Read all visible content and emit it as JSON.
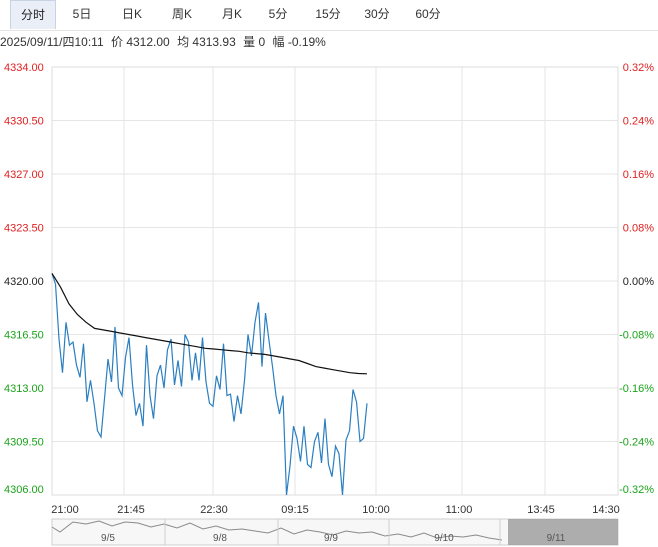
{
  "tabs": [
    {
      "label": "分时",
      "active": true
    },
    {
      "label": "5日",
      "active": false
    },
    {
      "label": "日K",
      "active": false
    },
    {
      "label": "周K",
      "active": false
    },
    {
      "label": "月K",
      "active": false
    },
    {
      "label": "5分",
      "active": false
    },
    {
      "label": "15分",
      "active": false
    },
    {
      "label": "30分",
      "active": false
    },
    {
      "label": "60分",
      "active": false
    }
  ],
  "info": {
    "datetime": "2025/09/11/四10:11",
    "price": "价 4312.00",
    "avg": "均 4313.93",
    "volume": "量 0",
    "change": "幅 -0.19%"
  },
  "colors": {
    "up": "#e02020",
    "down": "#1aa31a",
    "flat": "#222222",
    "price_line": "#2b7fc1",
    "avg_line": "#111111",
    "grid": "#e6e6e6",
    "navigator_fill": "#9a9a9a"
  },
  "chart_data": {
    "type": "line",
    "title": "",
    "xlabel": "",
    "ylabel": "",
    "ylim": [
      4306.0,
      4334.0
    ],
    "reference_price": 4320.0,
    "y_ticks_left": [
      "4334.00",
      "4330.50",
      "4327.00",
      "4323.50",
      "4320.00",
      "4316.50",
      "4313.00",
      "4309.50",
      "4306.00"
    ],
    "y_ticks_right": [
      "0.32%",
      "0.24%",
      "0.16%",
      "0.08%",
      "0.00%",
      "-0.08%",
      "-0.16%",
      "-0.24%",
      "-0.32%"
    ],
    "x_ticks": [
      "21:00",
      "21:45",
      "22:30",
      "09:15",
      "10:00",
      "11:00",
      "13:45",
      "14:30"
    ],
    "grid": true,
    "series": [
      {
        "values": [
          4320.5,
          4319.8,
          4316.2,
          4314.0,
          4317.3,
          4315.8,
          4316.0,
          4314.5,
          4313.7,
          4315.9,
          4312.1,
          4313.5,
          4312.0,
          4310.2,
          4309.8,
          4312.3,
          4314.9,
          4313.4,
          4317.0,
          4313.0,
          4312.5,
          4315.0,
          4316.3,
          4313.2,
          4311.2,
          4312.0,
          4310.5,
          4315.8,
          4312.5,
          4311.0,
          4313.8,
          4314.5,
          4313.0,
          4315.5,
          4316.2,
          4313.2,
          4314.8,
          4313.1,
          4316.5,
          4316.0,
          4313.5,
          4315.3,
          4313.5,
          4316.3,
          4313.4,
          4312.0,
          4311.8,
          4313.8,
          4312.9,
          4315.9,
          4312.5,
          4312.6,
          4310.8,
          4312.5,
          4311.3,
          4313.5,
          4316.5,
          4315.1,
          4317.3,
          4318.6,
          4314.4,
          4317.9,
          4316.1,
          4314.4,
          4312.5,
          4311.3,
          4312.5,
          4306.0,
          4307.9,
          4310.5,
          4309.7,
          4308.2,
          4310.5,
          4308.0,
          4307.8,
          4309.5,
          4310.1,
          4308.1,
          4311.0,
          4308.0,
          4307.2,
          4309.2,
          4308.7,
          4306.0,
          4309.6,
          4310.2,
          4312.9,
          4312.1,
          4309.5,
          4309.7,
          4312.0
        ],
        "avg_values": [
          4320.5,
          4319.6,
          4318.5,
          4317.8,
          4317.3,
          4316.9,
          4316.8,
          4316.7,
          4316.6,
          4316.5,
          4316.4,
          4316.3,
          4316.2,
          4316.1,
          4316.0,
          4315.9,
          4315.8,
          4315.7,
          4315.6,
          4315.55,
          4315.5,
          4315.45,
          4315.4,
          4315.3,
          4315.25,
          4315.2,
          4315.1,
          4315.0,
          4314.9,
          4314.8,
          4314.6,
          4314.4,
          4314.3,
          4314.2,
          4314.1,
          4314.0,
          4313.95,
          4313.93
        ]
      }
    ],
    "navigator_ticks": [
      "9/5",
      "9/8",
      "9/9",
      "9/10",
      "9/11"
    ]
  }
}
